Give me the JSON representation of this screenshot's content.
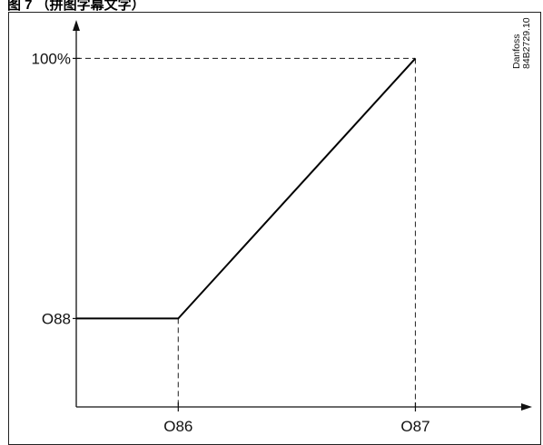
{
  "caption": "图 7    （拼图字幕文字）",
  "reference": {
    "brand": "Danfoss",
    "code": "84B2729.10"
  },
  "colors": {
    "axis": "#111111",
    "line": "#000000",
    "guide": "#333333"
  },
  "chart_data": {
    "type": "line",
    "title": "",
    "xlabel": "",
    "ylabel": "",
    "x_ticks": [
      "O86",
      "O87"
    ],
    "y_ticks": [
      "O88",
      "100%"
    ],
    "x_positions": [
      0.0,
      1.0
    ],
    "y_positions": [
      0.0,
      1.0
    ],
    "xlim": [
      -0.43,
      1.45
    ],
    "ylim": [
      -0.34,
      1.12
    ],
    "grid": false,
    "legend": "none",
    "series": [
      {
        "points": [
          {
            "x": -0.43,
            "y": 0.0
          },
          {
            "x": 0.0,
            "y": 0.0
          },
          {
            "x": 1.0,
            "y": 1.0
          }
        ]
      }
    ],
    "guides": [
      {
        "from": {
          "x": 0.0,
          "y": 0.0
        },
        "to": {
          "x": 0.0,
          "y": -0.34
        }
      },
      {
        "from": {
          "x": 1.0,
          "y": 1.0
        },
        "to": {
          "x": 1.0,
          "y": -0.34
        }
      },
      {
        "from": {
          "x": -0.43,
          "y": 1.0
        },
        "to": {
          "x": 1.0,
          "y": 1.0
        }
      }
    ]
  }
}
